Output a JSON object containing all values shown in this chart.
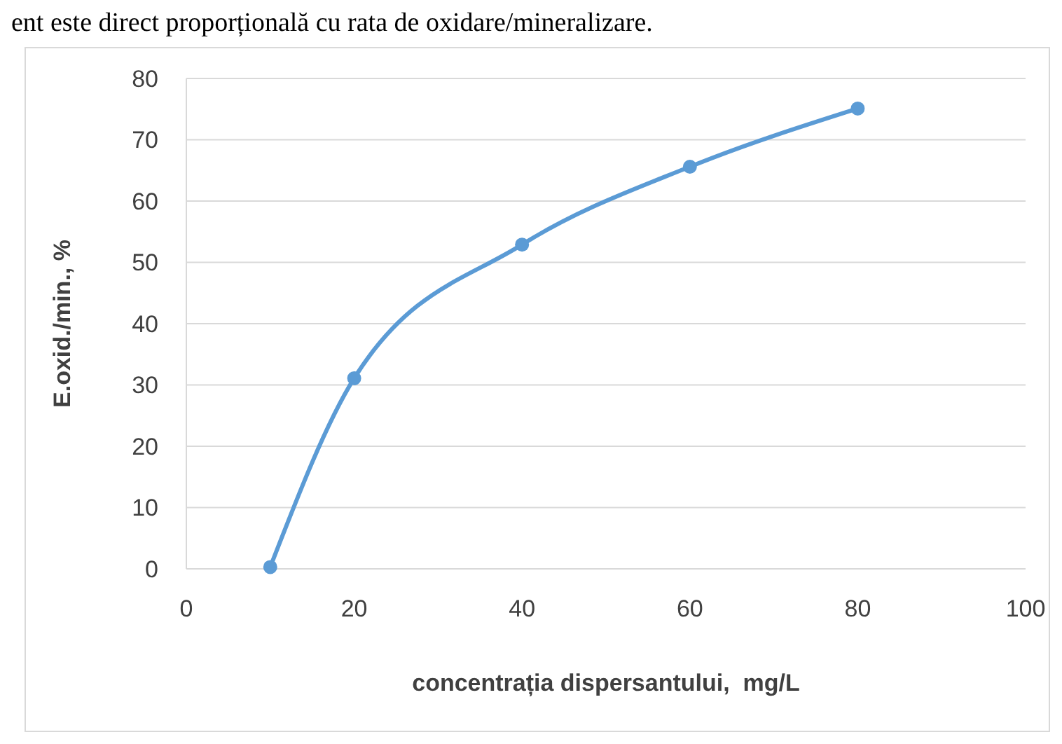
{
  "chart_data": {
    "type": "line",
    "xlabel": "concentrația dispersantului,  mg/L",
    "ylabel": "E.oxid./min., %",
    "annotations": [
      "ent este direct proporțională cu rata de oxidare/mineralizare."
    ],
    "x": [
      10,
      20,
      40,
      60,
      80
    ],
    "series": [
      {
        "color": "#5b9bd5",
        "values": [
          0.3,
          31.1,
          52.9,
          65.6,
          75.1
        ]
      }
    ],
    "xlim": [
      0,
      100
    ],
    "xticks": [
      0,
      20,
      40,
      60,
      80,
      100
    ],
    "ylim": [
      0,
      80
    ],
    "yticks": [
      0,
      10,
      20,
      30,
      40,
      50,
      60,
      70,
      80
    ],
    "grid": "y",
    "marker": "circle",
    "line_style": "solid"
  }
}
